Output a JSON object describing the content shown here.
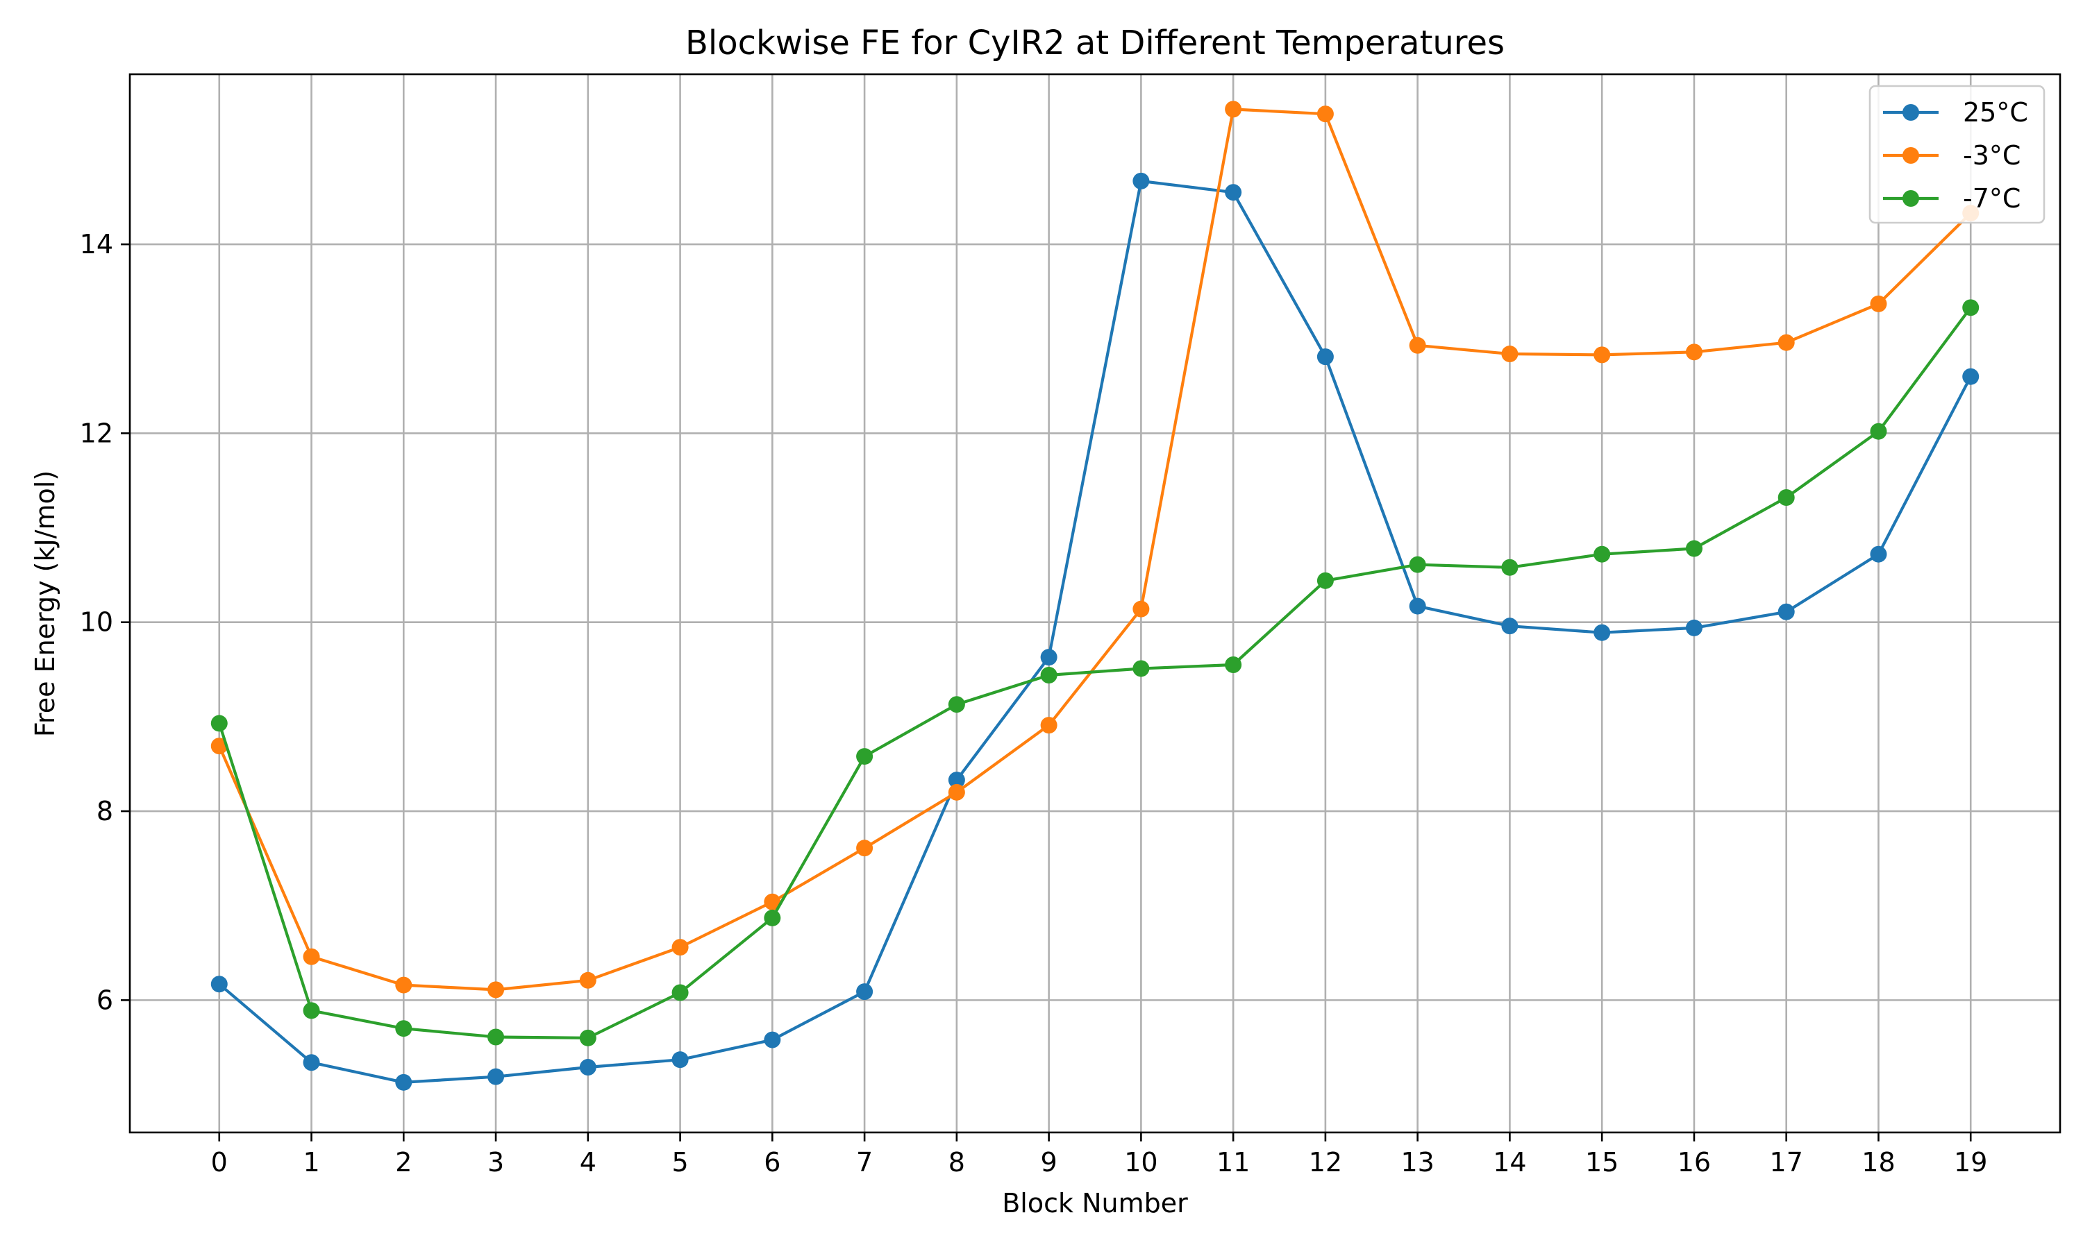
{
  "chart_data": {
    "type": "line",
    "title": "Blockwise FE for CyIR2 at Different Temperatures",
    "xlabel": "Block Number",
    "ylabel": "Free Energy (kJ/mol)",
    "x": [
      0,
      1,
      2,
      3,
      4,
      5,
      6,
      7,
      8,
      9,
      10,
      11,
      12,
      13,
      14,
      15,
      16,
      17,
      18,
      19
    ],
    "x_ticks": [
      "0",
      "1",
      "2",
      "3",
      "4",
      "5",
      "6",
      "7",
      "8",
      "9",
      "10",
      "11",
      "12",
      "13",
      "14",
      "15",
      "16",
      "17",
      "18",
      "19"
    ],
    "y_ticks": [
      "6",
      "8",
      "10",
      "12",
      "14"
    ],
    "y_tick_values": [
      6,
      8,
      10,
      12,
      14
    ],
    "xlim": [
      -0.97,
      19.97
    ],
    "ylim": [
      4.6,
      15.8
    ],
    "grid": true,
    "legend_position": "top-right",
    "series": [
      {
        "name": "25°C",
        "color": "#1f77b4",
        "values": [
          6.17,
          5.34,
          5.13,
          5.19,
          5.29,
          5.37,
          5.58,
          6.09,
          8.33,
          9.63,
          14.67,
          14.55,
          12.81,
          10.17,
          9.96,
          9.89,
          9.94,
          10.11,
          10.72,
          12.6
        ]
      },
      {
        "name": "-3°C",
        "color": "#ff7f0e",
        "values": [
          8.69,
          6.46,
          6.16,
          6.11,
          6.21,
          6.56,
          7.04,
          7.61,
          8.2,
          8.91,
          10.14,
          15.43,
          15.38,
          12.93,
          12.84,
          12.83,
          12.86,
          12.96,
          13.37,
          14.33
        ]
      },
      {
        "name": "-7°C",
        "color": "#2ca02c",
        "values": [
          8.93,
          5.89,
          5.7,
          5.61,
          5.6,
          6.08,
          6.87,
          8.58,
          9.13,
          9.44,
          9.51,
          9.55,
          10.44,
          10.61,
          10.58,
          10.72,
          10.78,
          11.32,
          12.02,
          13.33
        ]
      }
    ]
  }
}
